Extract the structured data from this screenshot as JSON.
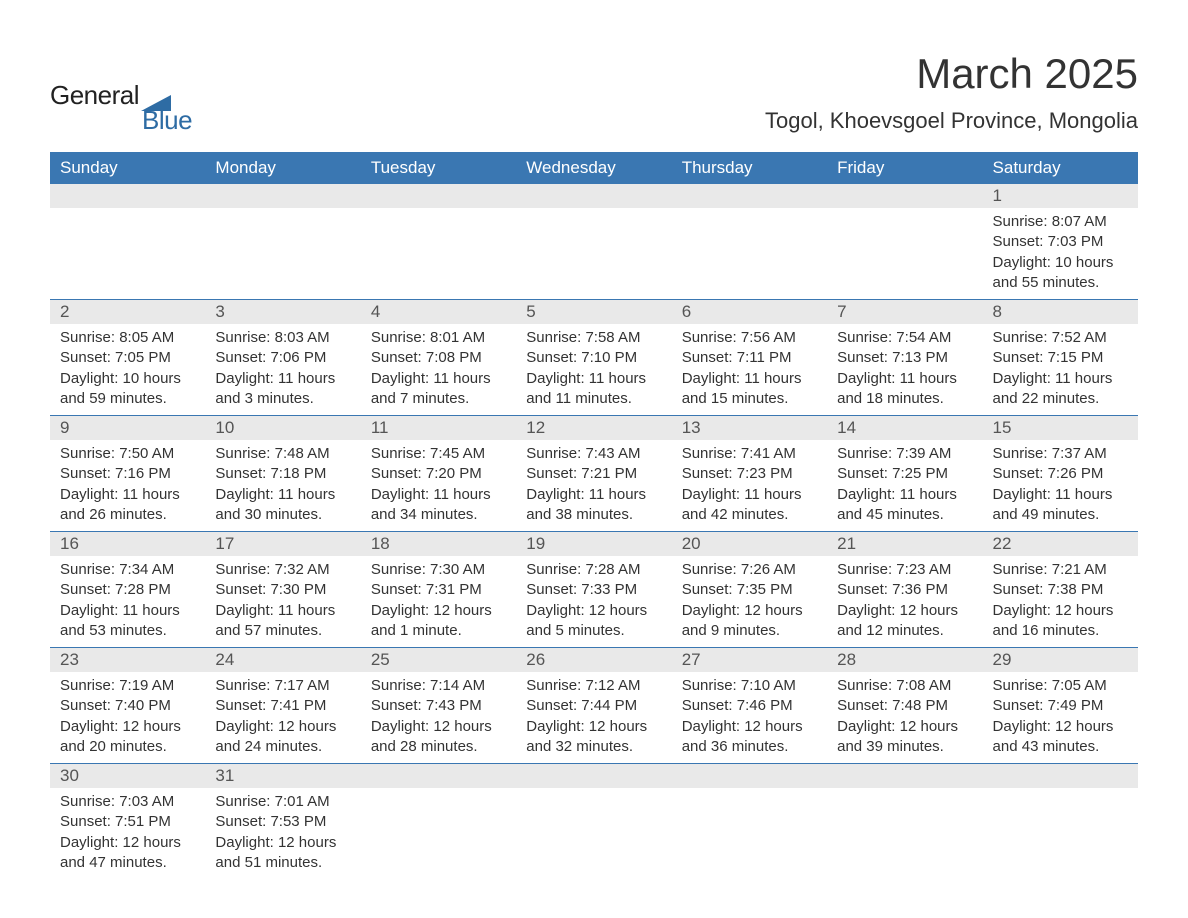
{
  "logo": {
    "text1": "General",
    "text2": "Blue",
    "shape_color": "#2e6ca4"
  },
  "title": "March 2025",
  "location": "Togol, Khoevsgoel Province, Mongolia",
  "colors": {
    "header_bg": "#3a77b2",
    "header_text": "#ffffff",
    "daynum_bg": "#e9e9e9",
    "cell_border": "#3a77b2",
    "body_text": "#333333"
  },
  "day_headers": [
    "Sunday",
    "Monday",
    "Tuesday",
    "Wednesday",
    "Thursday",
    "Friday",
    "Saturday"
  ],
  "weeks": [
    [
      null,
      null,
      null,
      null,
      null,
      null,
      {
        "n": "1",
        "sunrise": "8:07 AM",
        "sunset": "7:03 PM",
        "daylight": "10 hours and 55 minutes."
      }
    ],
    [
      {
        "n": "2",
        "sunrise": "8:05 AM",
        "sunset": "7:05 PM",
        "daylight": "10 hours and 59 minutes."
      },
      {
        "n": "3",
        "sunrise": "8:03 AM",
        "sunset": "7:06 PM",
        "daylight": "11 hours and 3 minutes."
      },
      {
        "n": "4",
        "sunrise": "8:01 AM",
        "sunset": "7:08 PM",
        "daylight": "11 hours and 7 minutes."
      },
      {
        "n": "5",
        "sunrise": "7:58 AM",
        "sunset": "7:10 PM",
        "daylight": "11 hours and 11 minutes."
      },
      {
        "n": "6",
        "sunrise": "7:56 AM",
        "sunset": "7:11 PM",
        "daylight": "11 hours and 15 minutes."
      },
      {
        "n": "7",
        "sunrise": "7:54 AM",
        "sunset": "7:13 PM",
        "daylight": "11 hours and 18 minutes."
      },
      {
        "n": "8",
        "sunrise": "7:52 AM",
        "sunset": "7:15 PM",
        "daylight": "11 hours and 22 minutes."
      }
    ],
    [
      {
        "n": "9",
        "sunrise": "7:50 AM",
        "sunset": "7:16 PM",
        "daylight": "11 hours and 26 minutes."
      },
      {
        "n": "10",
        "sunrise": "7:48 AM",
        "sunset": "7:18 PM",
        "daylight": "11 hours and 30 minutes."
      },
      {
        "n": "11",
        "sunrise": "7:45 AM",
        "sunset": "7:20 PM",
        "daylight": "11 hours and 34 minutes."
      },
      {
        "n": "12",
        "sunrise": "7:43 AM",
        "sunset": "7:21 PM",
        "daylight": "11 hours and 38 minutes."
      },
      {
        "n": "13",
        "sunrise": "7:41 AM",
        "sunset": "7:23 PM",
        "daylight": "11 hours and 42 minutes."
      },
      {
        "n": "14",
        "sunrise": "7:39 AM",
        "sunset": "7:25 PM",
        "daylight": "11 hours and 45 minutes."
      },
      {
        "n": "15",
        "sunrise": "7:37 AM",
        "sunset": "7:26 PM",
        "daylight": "11 hours and 49 minutes."
      }
    ],
    [
      {
        "n": "16",
        "sunrise": "7:34 AM",
        "sunset": "7:28 PM",
        "daylight": "11 hours and 53 minutes."
      },
      {
        "n": "17",
        "sunrise": "7:32 AM",
        "sunset": "7:30 PM",
        "daylight": "11 hours and 57 minutes."
      },
      {
        "n": "18",
        "sunrise": "7:30 AM",
        "sunset": "7:31 PM",
        "daylight": "12 hours and 1 minute."
      },
      {
        "n": "19",
        "sunrise": "7:28 AM",
        "sunset": "7:33 PM",
        "daylight": "12 hours and 5 minutes."
      },
      {
        "n": "20",
        "sunrise": "7:26 AM",
        "sunset": "7:35 PM",
        "daylight": "12 hours and 9 minutes."
      },
      {
        "n": "21",
        "sunrise": "7:23 AM",
        "sunset": "7:36 PM",
        "daylight": "12 hours and 12 minutes."
      },
      {
        "n": "22",
        "sunrise": "7:21 AM",
        "sunset": "7:38 PM",
        "daylight": "12 hours and 16 minutes."
      }
    ],
    [
      {
        "n": "23",
        "sunrise": "7:19 AM",
        "sunset": "7:40 PM",
        "daylight": "12 hours and 20 minutes."
      },
      {
        "n": "24",
        "sunrise": "7:17 AM",
        "sunset": "7:41 PM",
        "daylight": "12 hours and 24 minutes."
      },
      {
        "n": "25",
        "sunrise": "7:14 AM",
        "sunset": "7:43 PM",
        "daylight": "12 hours and 28 minutes."
      },
      {
        "n": "26",
        "sunrise": "7:12 AM",
        "sunset": "7:44 PM",
        "daylight": "12 hours and 32 minutes."
      },
      {
        "n": "27",
        "sunrise": "7:10 AM",
        "sunset": "7:46 PM",
        "daylight": "12 hours and 36 minutes."
      },
      {
        "n": "28",
        "sunrise": "7:08 AM",
        "sunset": "7:48 PM",
        "daylight": "12 hours and 39 minutes."
      },
      {
        "n": "29",
        "sunrise": "7:05 AM",
        "sunset": "7:49 PM",
        "daylight": "12 hours and 43 minutes."
      }
    ],
    [
      {
        "n": "30",
        "sunrise": "7:03 AM",
        "sunset": "7:51 PM",
        "daylight": "12 hours and 47 minutes."
      },
      {
        "n": "31",
        "sunrise": "7:01 AM",
        "sunset": "7:53 PM",
        "daylight": "12 hours and 51 minutes."
      },
      null,
      null,
      null,
      null,
      null
    ]
  ],
  "labels": {
    "sunrise": "Sunrise:",
    "sunset": "Sunset:",
    "daylight": "Daylight:"
  }
}
